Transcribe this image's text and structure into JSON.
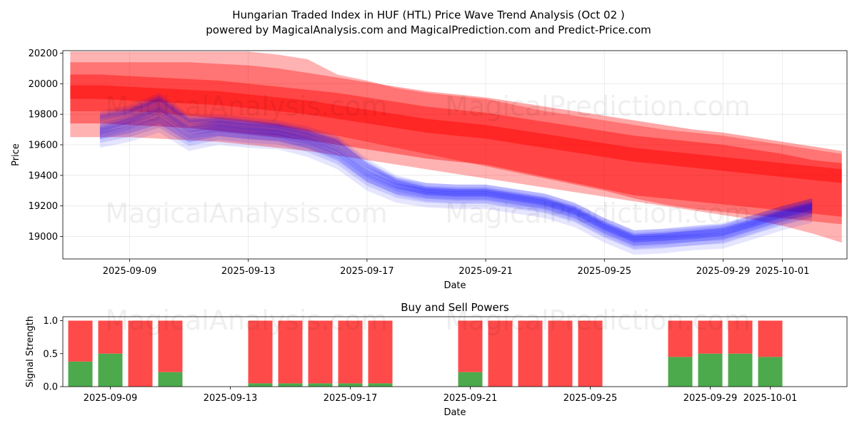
{
  "title_line1": "Hungarian Traded Index in HUF (HTL) Price Wave Trend Analysis (Oct 02 )",
  "title_line2": "powered by MagicalAnalysis.com and MagicalPrediction.com and Predict-Price.com",
  "watermarks": [
    "MagicalAnalysis.com",
    "MagicalPrediction.com"
  ],
  "colors": {
    "buy": "#4caa4c",
    "sell": "#ff4a4a",
    "wave_red": "#ff0000",
    "wave_blue": "#0000ff"
  },
  "chart_data": [
    {
      "type": "area",
      "title": "",
      "xlabel": "Date",
      "ylabel": "Price",
      "x_tick_labels": [
        "2025-09-09",
        "2025-09-13",
        "2025-09-17",
        "2025-09-21",
        "2025-09-25",
        "2025-09-29",
        "2025-10-01"
      ],
      "y_tick_labels": [
        "19000",
        "19200",
        "19400",
        "19600",
        "19800",
        "20000",
        "20200"
      ],
      "ylim": [
        18850,
        20220
      ],
      "grid": true,
      "dates": [
        "2025-09-07",
        "2025-09-08",
        "2025-09-09",
        "2025-09-10",
        "2025-09-11",
        "2025-09-12",
        "2025-09-13",
        "2025-09-14",
        "2025-09-15",
        "2025-09-16",
        "2025-09-17",
        "2025-09-18",
        "2025-09-19",
        "2025-09-20",
        "2025-09-21",
        "2025-09-22",
        "2025-09-23",
        "2025-09-24",
        "2025-09-25",
        "2025-09-26",
        "2025-09-27",
        "2025-09-28",
        "2025-09-29",
        "2025-09-30",
        "2025-10-01",
        "2025-10-02",
        "2025-10-03"
      ],
      "red_bands": [
        {
          "name": "red wave 1",
          "upper": [
            20210,
            20210,
            20210,
            20210,
            20210,
            20210,
            20210,
            20190,
            20160,
            20060,
            20020,
            19970,
            19940,
            19920,
            19900,
            19860,
            19820,
            19790,
            19760,
            19730,
            19700,
            19680,
            19660,
            19630,
            19600,
            19570,
            19540
          ],
          "lower": [
            19650,
            19650,
            19650,
            19640,
            19630,
            19620,
            19600,
            19580,
            19560,
            19530,
            19500,
            19470,
            19440,
            19410,
            19380,
            19350,
            19320,
            19290,
            19260,
            19230,
            19200,
            19170,
            19140,
            19110,
            19070,
            19020,
            18960
          ]
        },
        {
          "name": "red wave 2",
          "upper": [
            20140,
            20140,
            20140,
            20140,
            20140,
            20130,
            20120,
            20100,
            20070,
            20040,
            20010,
            19980,
            19950,
            19930,
            19910,
            19880,
            19850,
            19820,
            19790,
            19760,
            19730,
            19700,
            19680,
            19650,
            19620,
            19590,
            19560
          ],
          "lower": [
            19820,
            19820,
            19820,
            19810,
            19790,
            19770,
            19750,
            19720,
            19690,
            19660,
            19620,
            19580,
            19540,
            19500,
            19460,
            19420,
            19380,
            19340,
            19300,
            19250,
            19210,
            19180,
            19160,
            19140,
            19120,
            19100,
            19080
          ]
        },
        {
          "name": "red wave 3",
          "upper": [
            20060,
            20060,
            20050,
            20040,
            20030,
            20020,
            20000,
            19980,
            19960,
            19940,
            19910,
            19880,
            19850,
            19830,
            19810,
            19780,
            19750,
            19720,
            19690,
            19660,
            19640,
            19620,
            19600,
            19570,
            19540,
            19500,
            19480
          ],
          "lower": [
            19740,
            19740,
            19730,
            19720,
            19710,
            19690,
            19670,
            19650,
            19630,
            19600,
            19570,
            19540,
            19510,
            19490,
            19470,
            19430,
            19390,
            19350,
            19310,
            19270,
            19250,
            19230,
            19210,
            19190,
            19170,
            19150,
            19130
          ]
        },
        {
          "name": "red wave 4",
          "upper": [
            19990,
            19990,
            19980,
            19970,
            19960,
            19950,
            19930,
            19910,
            19890,
            19860,
            19830,
            19800,
            19770,
            19750,
            19730,
            19700,
            19670,
            19640,
            19610,
            19580,
            19560,
            19540,
            19520,
            19500,
            19480,
            19460,
            19440
          ],
          "lower": [
            19900,
            19900,
            19890,
            19880,
            19870,
            19860,
            19840,
            19820,
            19800,
            19770,
            19740,
            19710,
            19680,
            19660,
            19640,
            19610,
            19580,
            19550,
            19520,
            19490,
            19470,
            19450,
            19430,
            19410,
            19390,
            19370,
            19350
          ]
        }
      ],
      "blue_waves": [
        {
          "name": "blue wave 1",
          "mid": [
            null,
            19700,
            19760,
            19840,
            19700,
            19720,
            19700,
            19680,
            19640,
            19570,
            19420,
            19330,
            19290,
            19280,
            19280,
            19250,
            19220,
            19160,
            19060,
            18980,
            18990,
            19000,
            19020,
            19080,
            19140,
            19190,
            null
          ],
          "half_width": 60
        },
        {
          "name": "blue wave 2",
          "mid": [
            null,
            19780,
            19820,
            19900,
            19760,
            19760,
            19740,
            19720,
            19680,
            19620,
            19470,
            19360,
            19310,
            19300,
            19300,
            19270,
            19240,
            19180,
            19080,
            19000,
            19010,
            19030,
            19050,
            19100,
            19160,
            19210,
            null
          ],
          "half_width": 40
        },
        {
          "name": "blue wave 3",
          "mid": [
            null,
            19660,
            19700,
            19760,
            19640,
            19680,
            19660,
            19650,
            19600,
            19520,
            19380,
            19300,
            19270,
            19260,
            19260,
            19230,
            19200,
            19140,
            19040,
            18960,
            18970,
            18990,
            19000,
            19060,
            19120,
            19170,
            null
          ],
          "half_width": 80
        }
      ]
    },
    {
      "type": "bar",
      "title": "Buy and Sell Powers",
      "xlabel": "Date",
      "ylabel": "Signal Strength",
      "ylim": [
        0,
        1.05
      ],
      "y_tick_labels": [
        "0.0",
        "0.5",
        "1.0"
      ],
      "x_tick_labels": [
        "2025-09-09",
        "2025-09-13",
        "2025-09-17",
        "2025-09-21",
        "2025-09-25",
        "2025-09-29",
        "2025-10-01"
      ],
      "dates": [
        "2025-09-07",
        "2025-09-08",
        "2025-09-09",
        "2025-09-10",
        "2025-09-11",
        "2025-09-12",
        "2025-09-13",
        "2025-09-14",
        "2025-09-15",
        "2025-09-16",
        "2025-09-17",
        "2025-09-18",
        "2025-09-19",
        "2025-09-20",
        "2025-09-21",
        "2025-09-22",
        "2025-09-23",
        "2025-09-24",
        "2025-09-25",
        "2025-09-26",
        "2025-09-27",
        "2025-09-28",
        "2025-09-29",
        "2025-09-30",
        "2025-10-01",
        "2025-10-02",
        "2025-10-03"
      ],
      "series": [
        {
          "name": "Buy",
          "values": [
            null,
            0.38,
            0.5,
            0.0,
            0.22,
            null,
            null,
            0.05,
            0.05,
            0.05,
            0.05,
            0.05,
            null,
            null,
            0.22,
            0.0,
            0.0,
            0.0,
            0.0,
            null,
            null,
            0.45,
            0.5,
            0.5,
            0.45,
            null,
            null
          ]
        },
        {
          "name": "Sell",
          "values": [
            null,
            0.62,
            0.5,
            1.0,
            0.78,
            null,
            null,
            0.95,
            0.95,
            0.95,
            0.95,
            0.95,
            null,
            null,
            0.78,
            1.0,
            1.0,
            1.0,
            1.0,
            null,
            null,
            0.55,
            0.5,
            0.5,
            0.55,
            null,
            null
          ]
        }
      ]
    }
  ]
}
